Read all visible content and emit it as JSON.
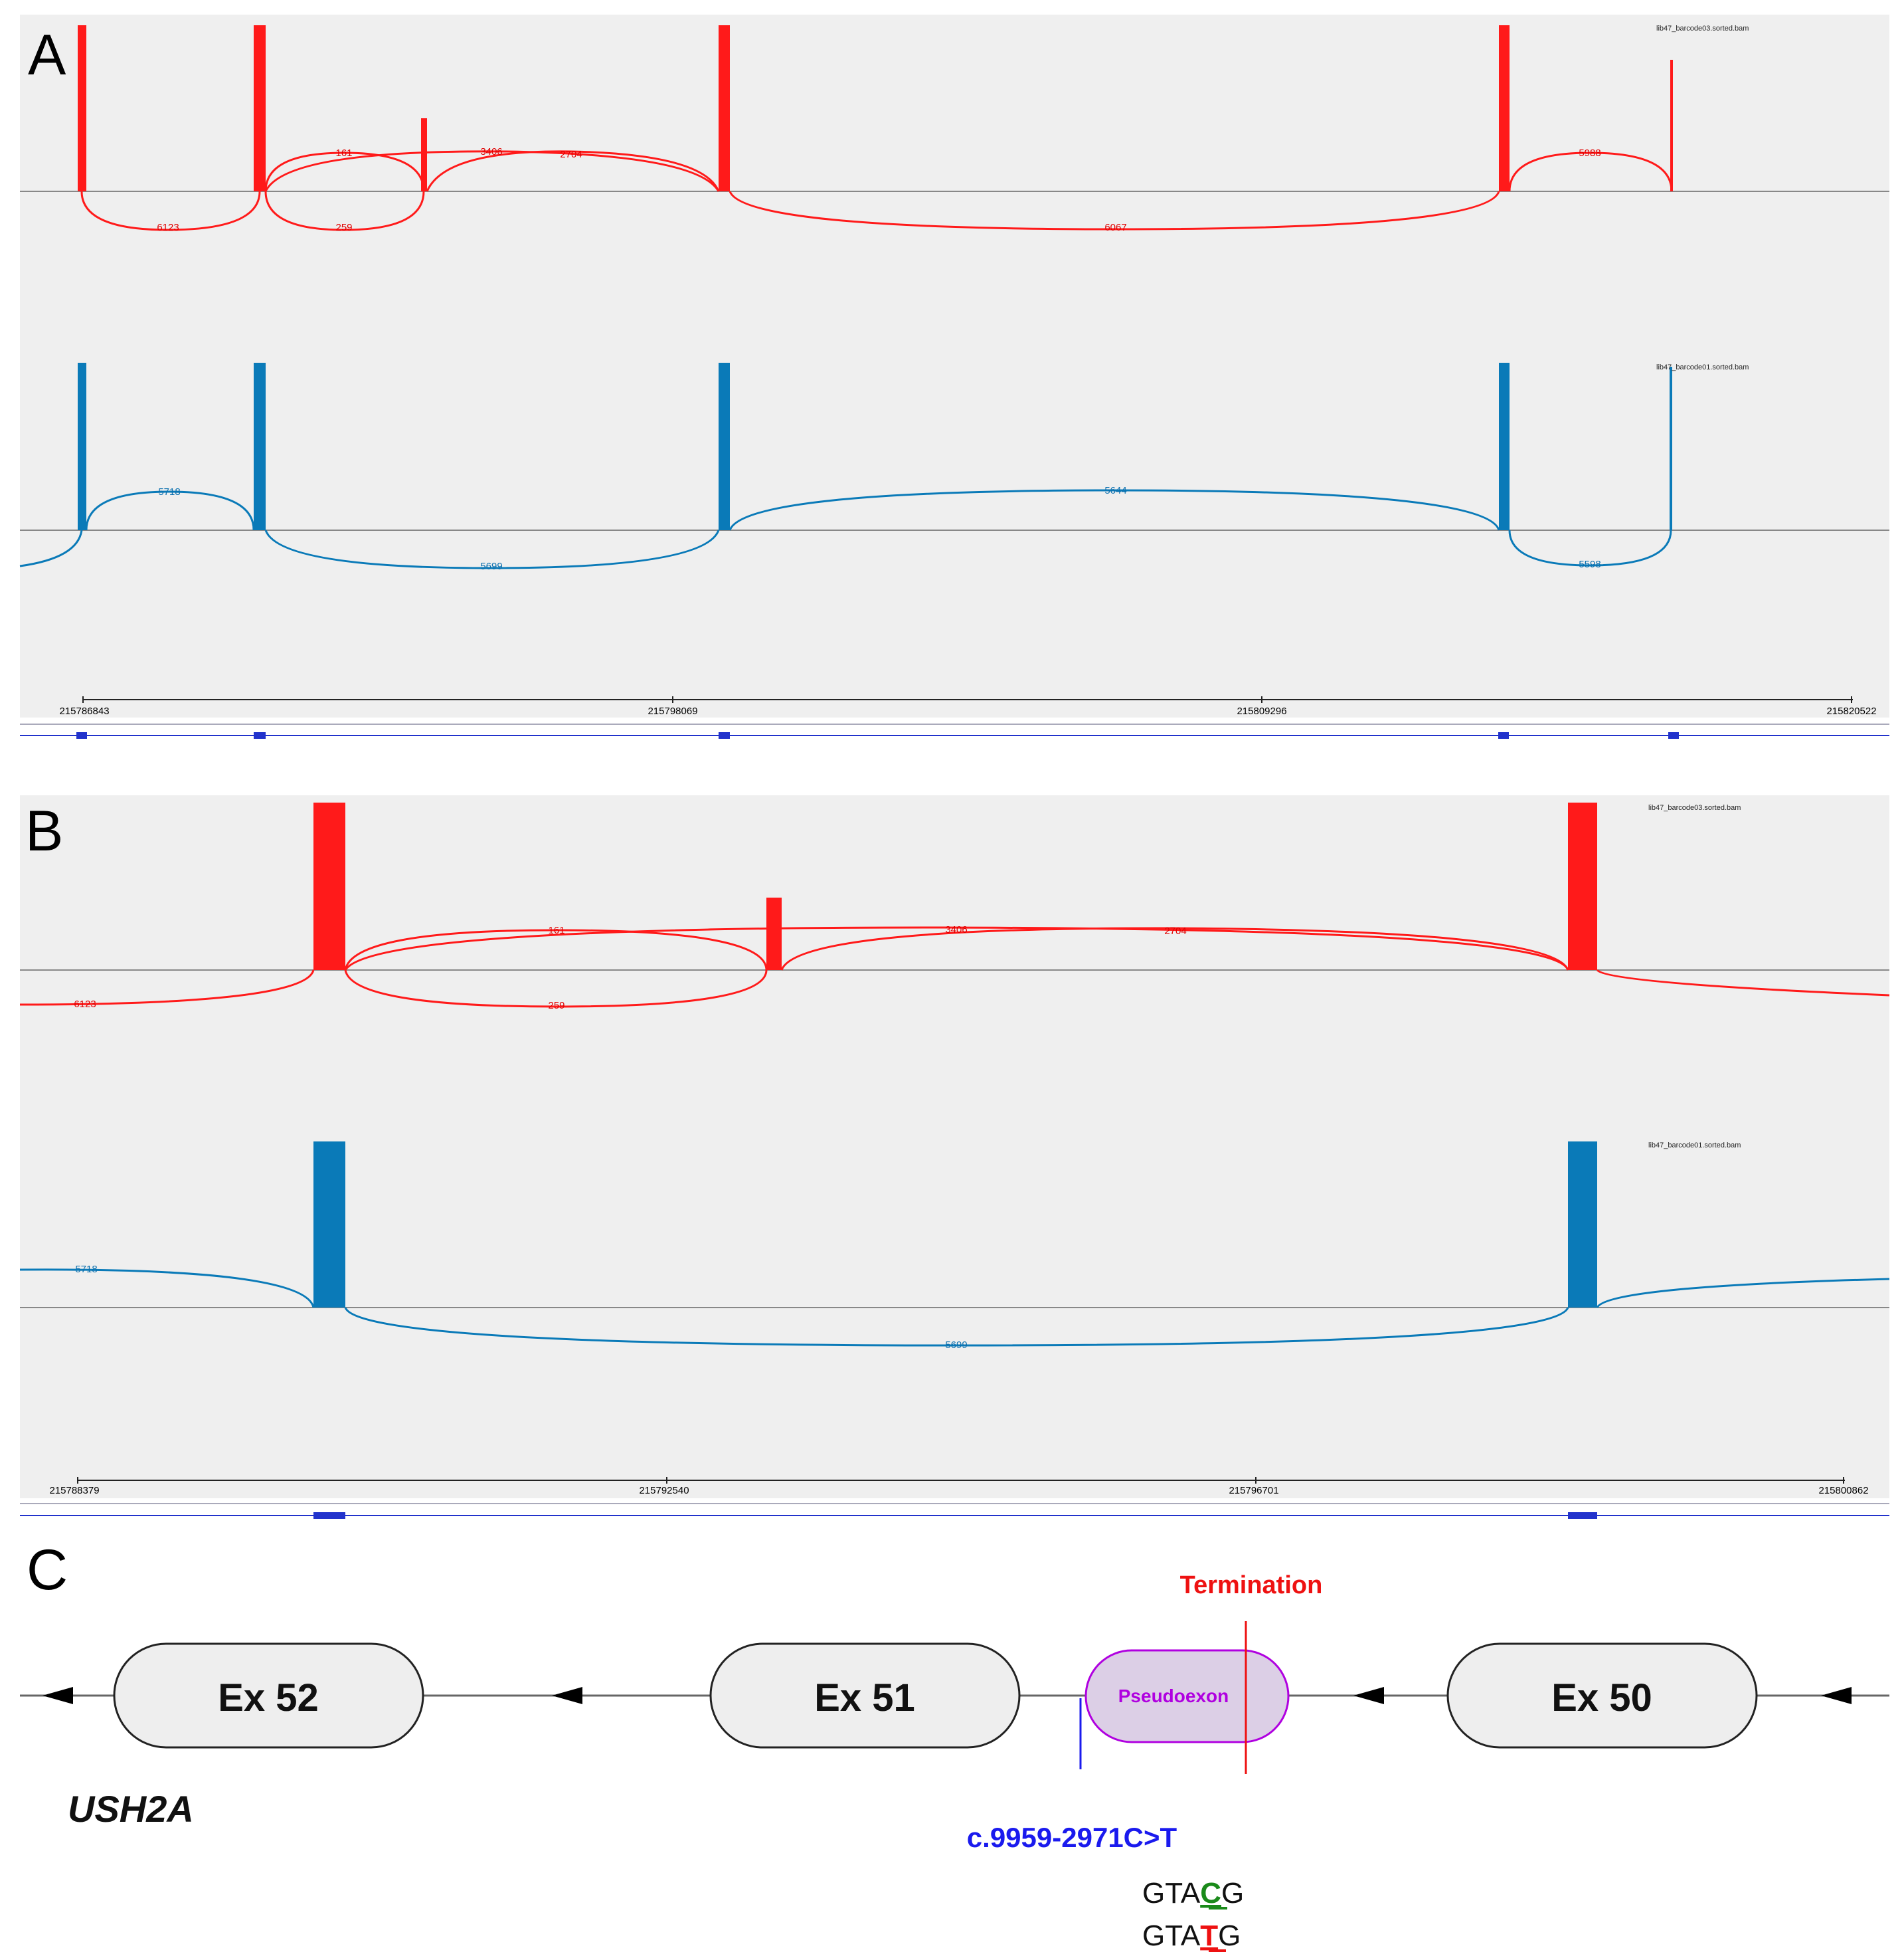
{
  "panels": {
    "a": {
      "letter": "A",
      "red_track": {
        "bam": "lib47_barcode03.sorted.bam",
        "junctions": [
          "6123",
          "161",
          "3406",
          "2704",
          "259",
          "6067",
          "5988"
        ]
      },
      "blue_track": {
        "bam": "lib47_barcode01.sorted.bam",
        "junctions": [
          "5718",
          "5699",
          "5644",
          "5598"
        ]
      },
      "coords": [
        "215786843",
        "215798069",
        "215809296",
        "215820522"
      ]
    },
    "b": {
      "letter": "B",
      "red_track": {
        "bam": "lib47_barcode03.sorted.bam",
        "junctions": [
          "6123",
          "161",
          "3406",
          "2704",
          "259"
        ]
      },
      "blue_track": {
        "bam": "lib47_barcode01.sorted.bam",
        "junctions": [
          "5718",
          "5699"
        ]
      },
      "coords": [
        "215788379",
        "215792540",
        "215796701",
        "215800862"
      ]
    },
    "c": {
      "letter": "C",
      "exons": [
        "Ex 52",
        "Ex 51",
        "Ex 50"
      ],
      "pseudoexon": "Pseudoexon",
      "termination": "Termination",
      "variant": "c.9959-2971C>T",
      "gene": "USH2A",
      "seq_ref": {
        "prefix": "GTA",
        "base": "C",
        "suffix": "G"
      },
      "seq_alt": {
        "prefix": "GTA",
        "base": "T",
        "suffix": "G"
      }
    }
  },
  "colors": {
    "red": "#ff1a1a",
    "blue": "#0a7ab8",
    "panel_bg": "#efefef",
    "transcript": "#2233cc",
    "pseudo_fill": "#dccfe6",
    "pseudo_stroke": "#b000e0",
    "seq_ref_base": "#1a8a1a",
    "seq_alt_base": "#ee1111"
  }
}
